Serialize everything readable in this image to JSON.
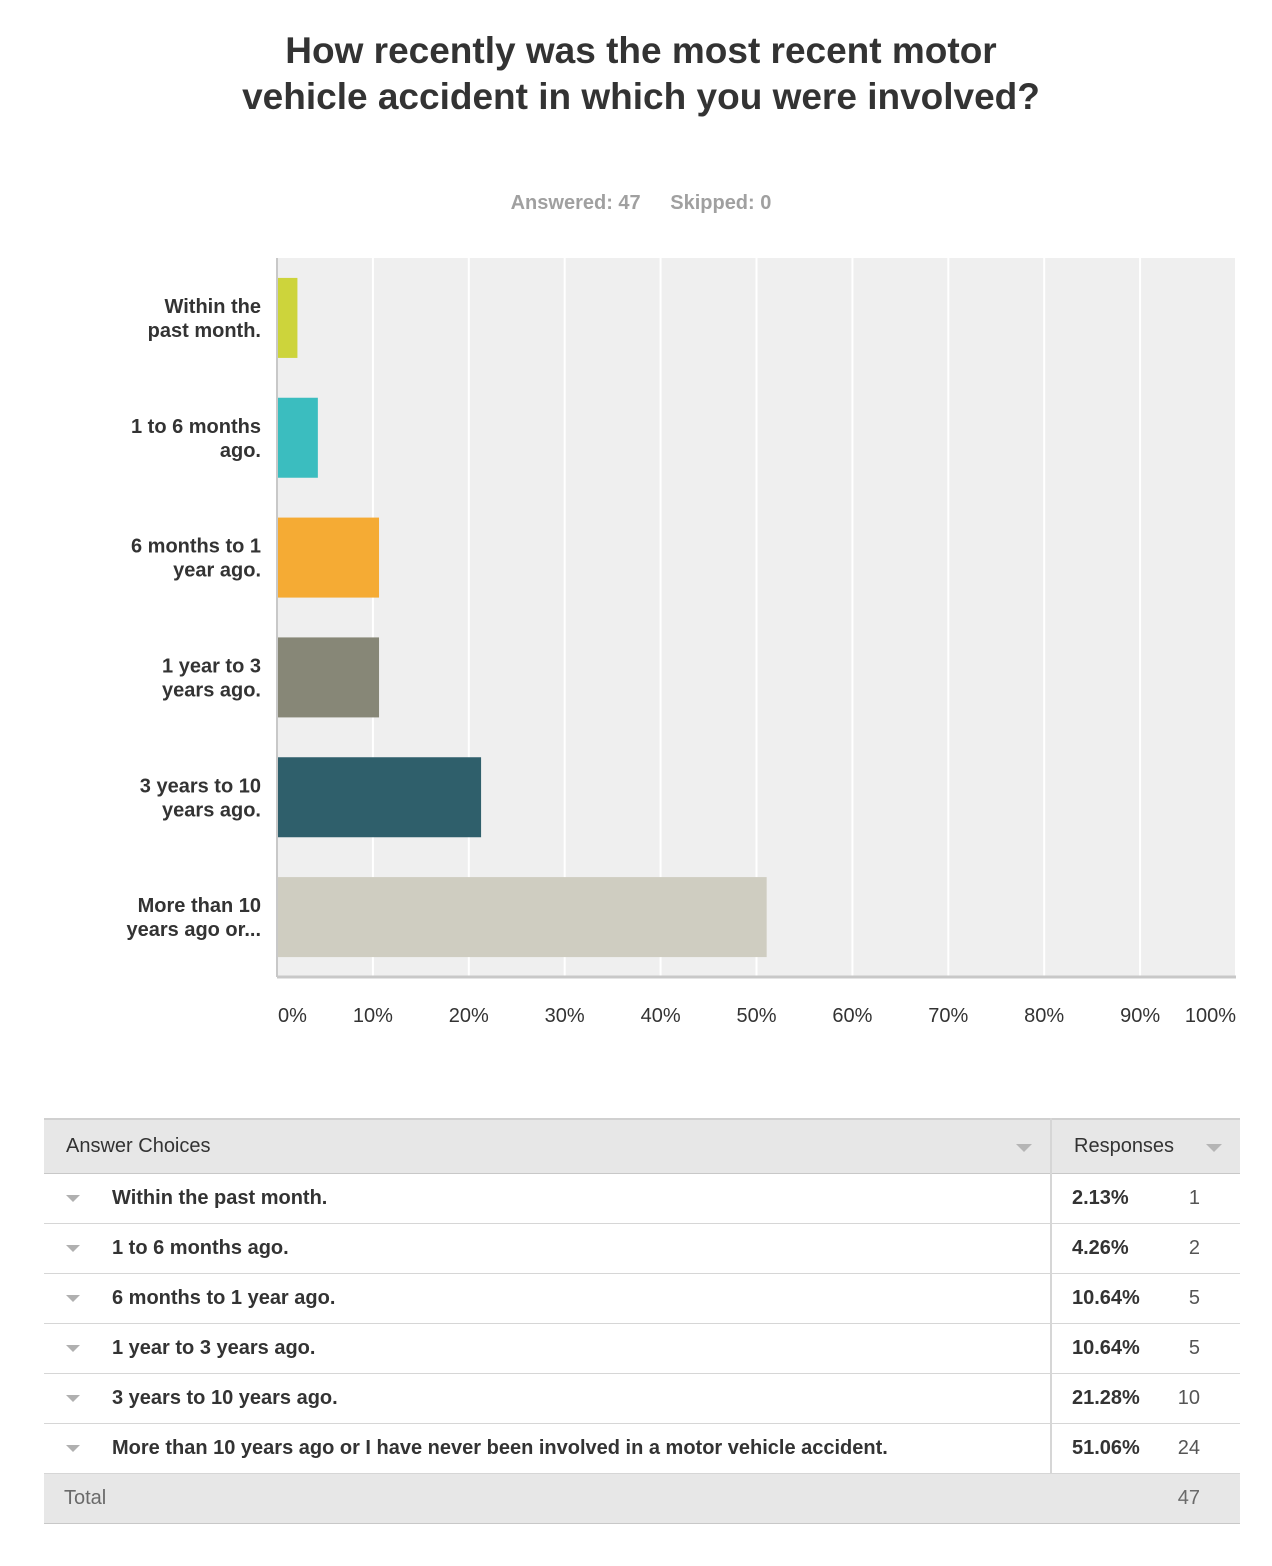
{
  "question": "How recently was the most recent motor vehicle accident in which you were involved?",
  "stats": {
    "answered": "Answered: 47",
    "skipped": "Skipped: 0"
  },
  "chart_data": {
    "type": "bar",
    "orientation": "horizontal",
    "categories": [
      [
        "Within the",
        "past month."
      ],
      [
        "1 to 6 months",
        "ago."
      ],
      [
        "6 months to 1",
        "year ago."
      ],
      [
        "1 year to 3",
        "years ago."
      ],
      [
        "3 years to 10",
        "years ago."
      ],
      [
        "More than 10",
        "years ago or..."
      ]
    ],
    "values": [
      2.13,
      4.26,
      10.64,
      10.64,
      21.28,
      51.06
    ],
    "colors": [
      "#cdd43b",
      "#3bbdbf",
      "#f5ab34",
      "#878777",
      "#2f5f6b",
      "#cfcdc1"
    ],
    "xlim": [
      0,
      100
    ],
    "ticks": [
      "0%",
      "10%",
      "20%",
      "30%",
      "40%",
      "50%",
      "60%",
      "70%",
      "80%",
      "90%",
      "100%"
    ],
    "grid": true
  },
  "table": {
    "header": {
      "choices": "Answer Choices",
      "responses": "Responses"
    },
    "rows": [
      {
        "choice": "Within the past month.",
        "pct": "2.13%",
        "count": "1"
      },
      {
        "choice": "1 to 6 months ago.",
        "pct": "4.26%",
        "count": "2"
      },
      {
        "choice": "6 months to 1 year ago.",
        "pct": "10.64%",
        "count": "5"
      },
      {
        "choice": "1 year to 3 years ago.",
        "pct": "10.64%",
        "count": "5"
      },
      {
        "choice": "3 years to 10 years ago.",
        "pct": "21.28%",
        "count": "10"
      },
      {
        "choice": "More than 10 years ago or I have never been involved in a motor vehicle accident.",
        "pct": "51.06%",
        "count": "24"
      }
    ],
    "total": {
      "label": "Total",
      "count": "47"
    }
  }
}
